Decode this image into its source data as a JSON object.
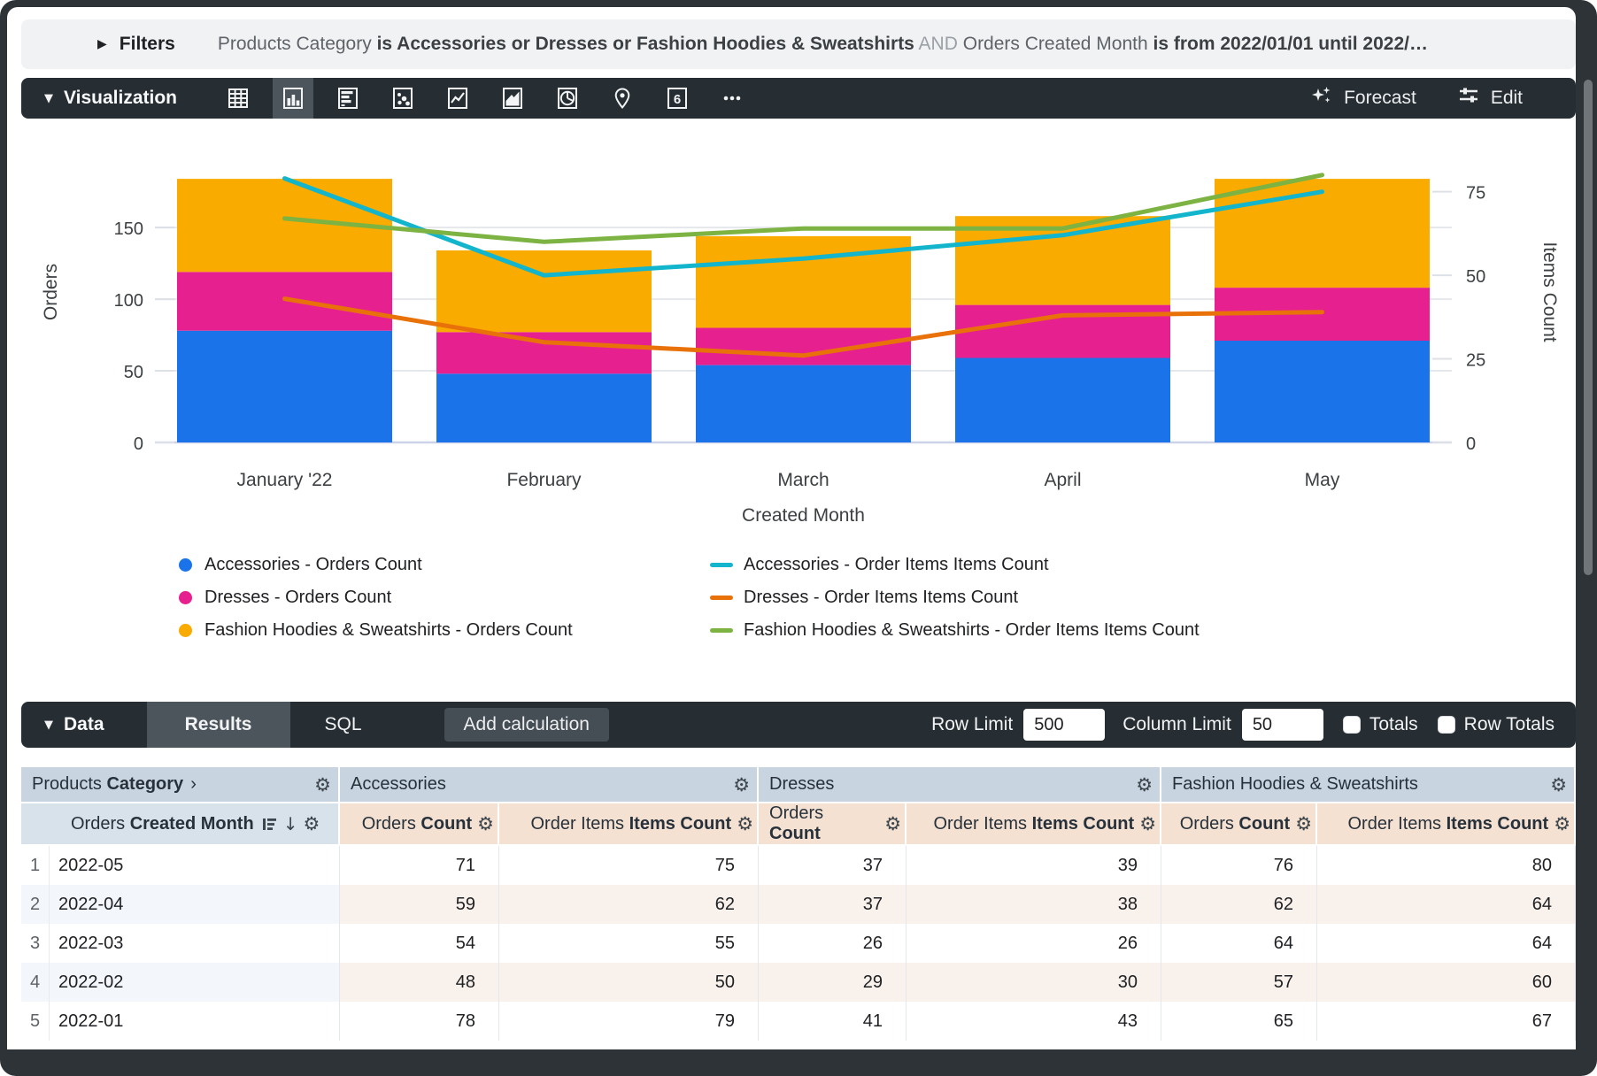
{
  "filters": {
    "label": "Filters",
    "summary_parts": [
      {
        "text": "Products Category ",
        "style": "normal"
      },
      {
        "text": "is Accessories or Dresses or Fashion Hoodies & Sweatshirts",
        "style": "bold"
      },
      {
        "text": " AND ",
        "style": "muted"
      },
      {
        "text": "Orders Created Month ",
        "style": "normal"
      },
      {
        "text": "is from 2022/01/01 until 2022/…",
        "style": "bold"
      }
    ]
  },
  "viz_toolbar": {
    "section_label": "Visualization",
    "icons": [
      {
        "name": "table-chart-icon",
        "type": "table",
        "selected": false
      },
      {
        "name": "column-chart-icon",
        "type": "column",
        "selected": true
      },
      {
        "name": "bar-chart-icon",
        "type": "hbar",
        "selected": false
      },
      {
        "name": "scatter-chart-icon",
        "type": "scatter",
        "selected": false
      },
      {
        "name": "line-chart-icon",
        "type": "line",
        "selected": false
      },
      {
        "name": "area-chart-icon",
        "type": "area",
        "selected": false
      },
      {
        "name": "pie-chart-icon",
        "type": "pie",
        "selected": false
      },
      {
        "name": "map-chart-icon",
        "type": "map",
        "selected": false
      },
      {
        "name": "single-value-icon",
        "type": "single",
        "selected": false
      },
      {
        "name": "more-viz-icon",
        "type": "more",
        "selected": false
      }
    ],
    "forecast_label": "Forecast",
    "edit_label": "Edit"
  },
  "chart_data": {
    "type": "combo (stacked bar + line)",
    "x_categories": [
      "January '22",
      "February",
      "March",
      "April",
      "May"
    ],
    "x_axis_label": "Created Month",
    "left_axis": {
      "label": "Orders",
      "ticks": [
        0,
        50,
        100,
        150
      ],
      "max": 210
    },
    "right_axis": {
      "label": "Items Count",
      "ticks": [
        0,
        25,
        50,
        75
      ],
      "max": 90
    },
    "grid": true,
    "legend_position": "bottom",
    "bar_series": [
      {
        "name": "Accessories - Orders Count",
        "color": "#1A73E8",
        "values": [
          78,
          48,
          54,
          59,
          71
        ]
      },
      {
        "name": "Dresses - Orders Count",
        "color": "#E6218F",
        "values": [
          41,
          29,
          26,
          37,
          37
        ]
      },
      {
        "name": "Fashion Hoodies & Sweatshirts - Orders Count",
        "color": "#F9AB00",
        "values": [
          65,
          57,
          64,
          62,
          76
        ]
      }
    ],
    "line_series": [
      {
        "name": "Accessories - Order Items Items Count",
        "color": "#12B5CB",
        "values": [
          79,
          50,
          55,
          62,
          75
        ]
      },
      {
        "name": "Dresses - Order Items Items Count",
        "color": "#E8710A",
        "values": [
          43,
          30,
          26,
          38,
          39
        ]
      },
      {
        "name": "Fashion Hoodies & Sweatshirts - Order Items Items Count",
        "color": "#7CB342",
        "values": [
          67,
          60,
          64,
          64,
          80
        ]
      }
    ]
  },
  "data_toolbar": {
    "section_label": "Data",
    "tabs": [
      "Results",
      "SQL"
    ],
    "active_tab": "Results",
    "add_calculation_label": "Add calculation",
    "row_limit_label": "Row Limit",
    "row_limit_value": "500",
    "column_limit_label": "Column Limit",
    "column_limit_value": "50",
    "totals_label": "Totals",
    "row_totals_label": "Row Totals"
  },
  "table": {
    "group_headers": [
      {
        "plain": "Products ",
        "bold": "Category",
        "chevron": "›"
      },
      {
        "plain": "Accessories",
        "bold": ""
      },
      {
        "plain": "Dresses",
        "bold": ""
      },
      {
        "plain": "Fashion Hoodies & Sweatshirts",
        "bold": ""
      }
    ],
    "dimension_header": {
      "plain": "Orders ",
      "bold": "Created Month"
    },
    "measure_headers": [
      {
        "plain": "Orders ",
        "bold": "Count"
      },
      {
        "plain": "Order Items ",
        "bold": "Items Count"
      }
    ],
    "rows": [
      {
        "num": "1",
        "month": "2022-05",
        "values": [
          71,
          75,
          37,
          39,
          76,
          80
        ]
      },
      {
        "num": "2",
        "month": "2022-04",
        "values": [
          59,
          62,
          37,
          38,
          62,
          64
        ]
      },
      {
        "num": "3",
        "month": "2022-03",
        "values": [
          54,
          55,
          26,
          26,
          64,
          64
        ]
      },
      {
        "num": "4",
        "month": "2022-02",
        "values": [
          48,
          50,
          29,
          30,
          57,
          60
        ]
      },
      {
        "num": "5",
        "month": "2022-01",
        "values": [
          78,
          79,
          41,
          43,
          65,
          67
        ]
      }
    ]
  }
}
